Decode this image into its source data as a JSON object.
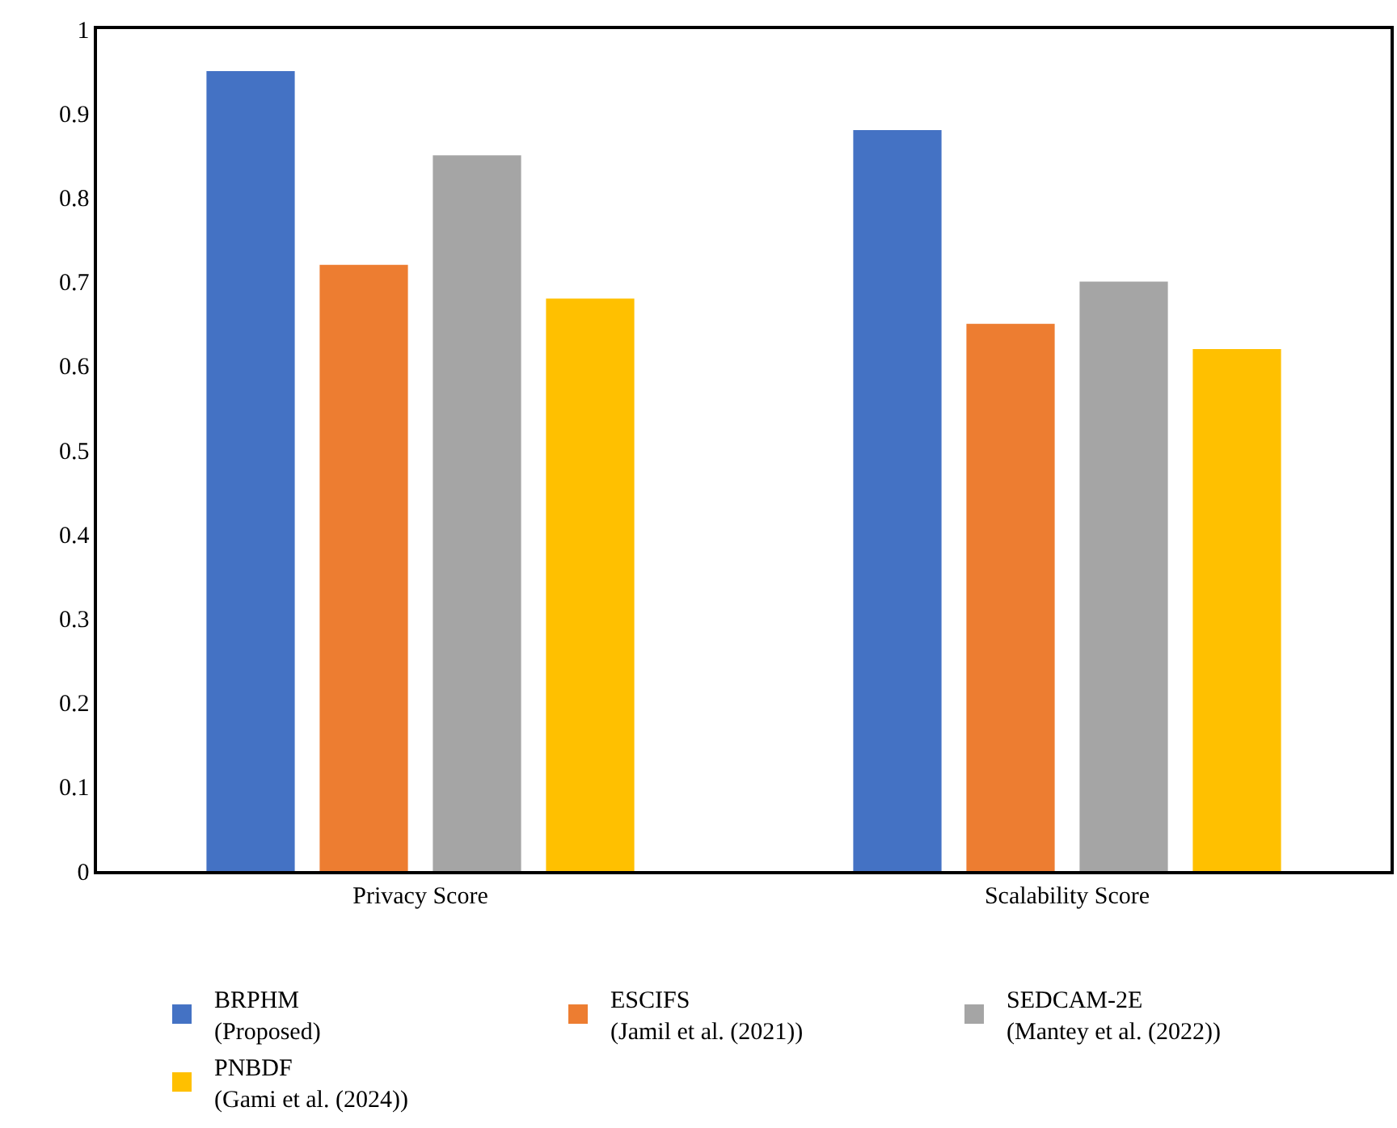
{
  "chart_data": {
    "type": "bar",
    "categories": [
      "Privacy Score",
      "Scalability Score"
    ],
    "series": [
      {
        "name": "BRPHM\n(Proposed)",
        "color": "#4472c4",
        "values": [
          0.95,
          0.88
        ]
      },
      {
        "name": "ESCIFS\n(Jamil et al. (2021))",
        "color": "#ed7d31",
        "values": [
          0.72,
          0.65
        ]
      },
      {
        "name": "SEDCAM-2E\n(Mantey et al. (2022))",
        "color": "#a5a5a5",
        "values": [
          0.85,
          0.7
        ]
      },
      {
        "name": "PNBDF\n(Gami et al. (2024))",
        "color": "#ffc000",
        "values": [
          0.68,
          0.62
        ]
      }
    ],
    "ylim": [
      0,
      1
    ],
    "yticks": [
      0,
      0.1,
      0.2,
      0.3,
      0.4,
      0.5,
      0.6,
      0.7,
      0.8,
      0.9,
      1
    ],
    "grid": false,
    "legend": "bottom"
  }
}
